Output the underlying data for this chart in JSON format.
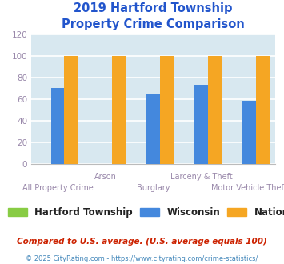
{
  "title": "2019 Hartford Township\nProperty Crime Comparison",
  "title_color": "#2255cc",
  "categories": [
    "All Property Crime",
    "Arson",
    "Burglary",
    "Larceny & Theft",
    "Motor Vehicle Theft"
  ],
  "series": {
    "Hartford Township": [
      0,
      0,
      0,
      0,
      0
    ],
    "Wisconsin": [
      70,
      0,
      65,
      73,
      58
    ],
    "National": [
      100,
      100,
      100,
      100,
      100
    ]
  },
  "colors": {
    "Hartford Township": "#88cc44",
    "Wisconsin": "#4488dd",
    "National": "#f5a623"
  },
  "ylim": [
    0,
    120
  ],
  "yticks": [
    0,
    20,
    40,
    60,
    80,
    100,
    120
  ],
  "background_color": "#d8e8f0",
  "grid_color": "#ffffff",
  "footnote1": "Compared to U.S. average. (U.S. average equals 100)",
  "footnote2": "© 2025 CityRating.com - https://www.cityrating.com/crime-statistics/",
  "footnote1_color": "#cc2200",
  "footnote2_color": "#4488bb",
  "tick_label_color": "#9988aa",
  "bar_width": 0.28
}
